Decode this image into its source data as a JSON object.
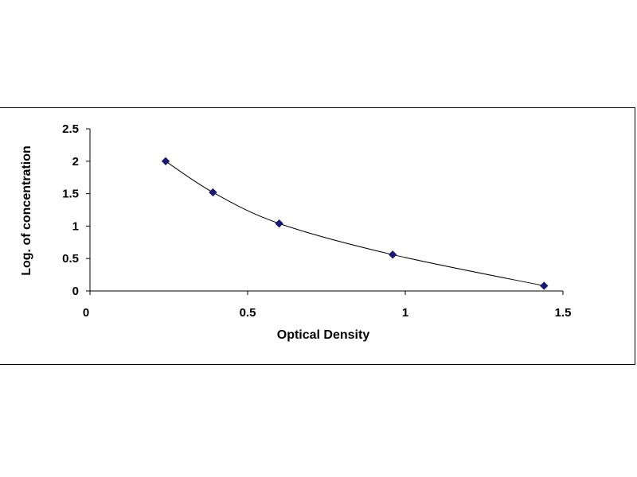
{
  "chart_data": {
    "type": "scatter",
    "title": "",
    "xlabel": "Optical Density",
    "ylabel": "Log. of concentration",
    "xlim": [
      0,
      1.5
    ],
    "ylim": [
      0,
      2.5
    ],
    "x_ticks": [
      "0",
      "0.5",
      "1",
      "1.5"
    ],
    "y_ticks": [
      "0",
      "0.5",
      "1",
      "1.5",
      "2",
      "2.5"
    ],
    "grid": false,
    "legend": "none",
    "trendline": true,
    "series": [
      {
        "color": "#1a1a6e",
        "marker": "diamond",
        "x": [
          0.24,
          0.39,
          0.6,
          0.96,
          1.44
        ],
        "y": [
          2.0,
          1.52,
          1.04,
          0.56,
          0.08
        ]
      }
    ]
  }
}
